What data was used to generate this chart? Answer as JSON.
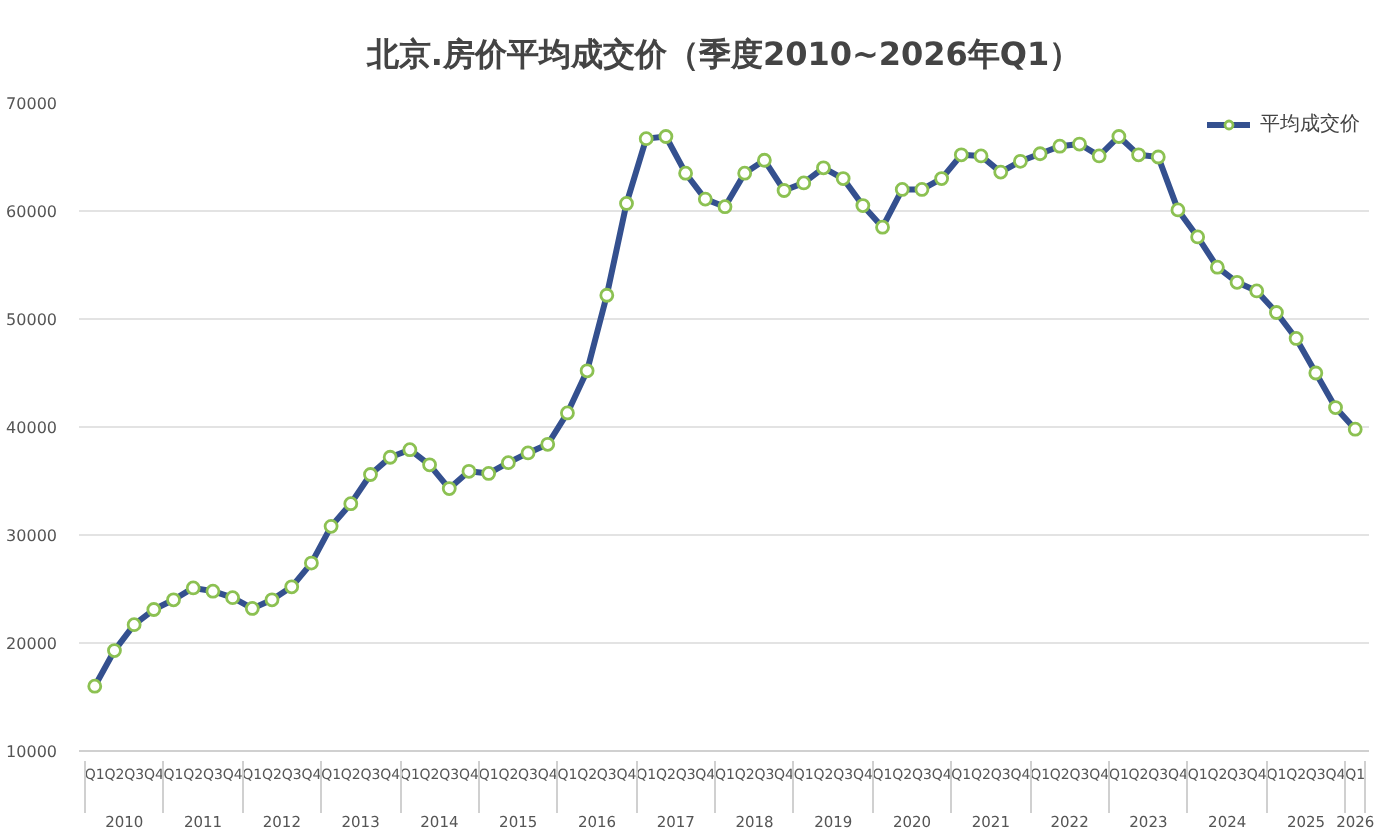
{
  "chart_data": {
    "type": "line",
    "title": "北京.房价平均成交价（季度2010~2026年Q1）",
    "categories": [
      "Q1",
      "Q2",
      "Q3",
      "Q4",
      "Q1",
      "Q2",
      "Q3",
      "Q4",
      "Q1",
      "Q2",
      "Q3",
      "Q4",
      "Q1",
      "Q2",
      "Q3",
      "Q4",
      "Q1",
      "Q2",
      "Q3",
      "Q4",
      "Q1",
      "Q2",
      "Q3",
      "Q4",
      "Q1",
      "Q2",
      "Q3",
      "Q4",
      "Q1",
      "Q2",
      "Q3",
      "Q4",
      "Q1",
      "Q2",
      "Q3",
      "Q4",
      "Q1",
      "Q2",
      "Q3",
      "Q4",
      "Q1",
      "Q2",
      "Q3",
      "Q4",
      "Q1",
      "Q2",
      "Q3",
      "Q4",
      "Q1",
      "Q2",
      "Q3",
      "Q4",
      "Q1",
      "Q2",
      "Q3",
      "Q4",
      "Q1",
      "Q2",
      "Q3",
      "Q4",
      "Q1",
      "Q2",
      "Q3",
      "Q4",
      "Q1"
    ],
    "annotations": [
      "2010",
      "2011",
      "2012",
      "2013",
      "2014",
      "2015",
      "2016",
      "2017",
      "2018",
      "2019",
      "2020",
      "2021",
      "2022",
      "2023",
      "2024",
      "2025",
      "2026"
    ],
    "series": [
      {
        "name": "平均成交价",
        "color": "#34508f",
        "colors": [
          "#8cc152",
          "#8cc152",
          "#8cc152",
          "#8cc152",
          "#8cc152",
          "#8cc152",
          "#8cc152",
          "#8cc152",
          "#8cc152",
          "#8cc152",
          "#8cc152",
          "#8cc152",
          "#8cc152",
          "#8cc152",
          "#8cc152",
          "#8cc152",
          "#8cc152",
          "#8cc152",
          "#8cc152",
          "#8cc152",
          "#8cc152",
          "#8cc152",
          "#8cc152",
          "#8cc152",
          "#8cc152",
          "#8cc152",
          "#8cc152",
          "#8cc152",
          "#8cc152",
          "#8cc152",
          "#8cc152",
          "#8cc152",
          "#8cc152",
          "#8cc152",
          "#8cc152",
          "#8cc152",
          "#8cc152",
          "#8cc152",
          "#8cc152",
          "#8cc152",
          "#8cc152",
          "#8cc152",
          "#8cc152",
          "#8cc152",
          "#8cc152",
          "#8cc152",
          "#8cc152",
          "#8cc152",
          "#8cc152",
          "#8cc152",
          "#8cc152",
          "#8cc152",
          "#8cc152",
          "#8cc152",
          "#8cc152",
          "#8cc152",
          "#8cc152",
          "#8cc152",
          "#8cc152",
          "#8cc152",
          "#8cc152",
          "#8cc152",
          "#8cc152",
          "#8cc152",
          "#8cc152"
        ],
        "values": [
          16000,
          19300,
          21700,
          23100,
          24000,
          25100,
          24800,
          24200,
          23200,
          24000,
          25200,
          27400,
          30800,
          32900,
          35600,
          37200,
          37900,
          36500,
          34300,
          35900,
          35700,
          36700,
          37600,
          38400,
          41300,
          45200,
          52200,
          60700,
          66700,
          66900,
          63500,
          61100,
          60400,
          63500,
          64700,
          61900,
          62600,
          64000,
          63000,
          60500,
          58500,
          62000,
          62000,
          63000,
          65200,
          65100,
          63600,
          64600,
          65300,
          66000,
          66200,
          65100,
          66900,
          65200,
          65000,
          60100,
          57600,
          54800,
          53400,
          52600,
          50600,
          48200,
          45000,
          41800,
          39800
        ]
      }
    ],
    "ylim": [
      10000,
      70000
    ],
    "yticks": [
      10000,
      20000,
      30000,
      40000,
      50000,
      60000,
      70000
    ],
    "grid": "y",
    "legend": "top right",
    "marker": "circle",
    "line_style": "solid"
  }
}
